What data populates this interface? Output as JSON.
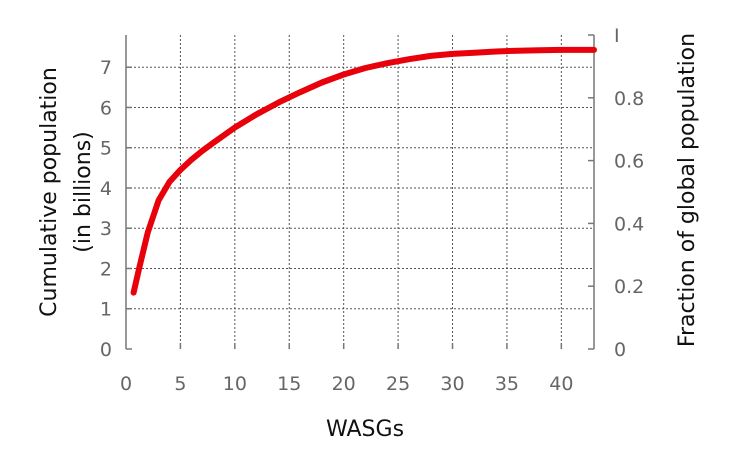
{
  "chart_data": {
    "type": "line",
    "title": "",
    "xlabel": "WASGs",
    "ylabel": [
      "Cumulative population",
      "(in billions)"
    ],
    "y2label": "Fraction of global population",
    "xlim": [
      0,
      43
    ],
    "ylim": [
      0,
      7.8
    ],
    "y2lim": [
      0,
      1
    ],
    "xticks": [
      0,
      5,
      10,
      15,
      20,
      25,
      30,
      35,
      40
    ],
    "yticks": [
      0,
      1,
      2,
      3,
      4,
      5,
      6,
      7
    ],
    "y2ticks": [
      0,
      0.2,
      0.4,
      0.6,
      0.8,
      1
    ],
    "y2tick_labels": [
      "0",
      "0.2",
      "0.4",
      "0.6",
      "0.8",
      "I"
    ],
    "grid": true,
    "series": [
      {
        "color": "#e8000b",
        "x": [
          0.7,
          1.2,
          2,
          3,
          4,
          5,
          6,
          7,
          8,
          10,
          12,
          14,
          16,
          18,
          20,
          22,
          24,
          26,
          28,
          30,
          32,
          34,
          36,
          38,
          40,
          43
        ],
        "y": [
          1.4,
          2.0,
          2.9,
          3.7,
          4.15,
          4.45,
          4.7,
          4.92,
          5.12,
          5.5,
          5.83,
          6.12,
          6.38,
          6.62,
          6.82,
          6.98,
          7.1,
          7.2,
          7.28,
          7.33,
          7.36,
          7.39,
          7.41,
          7.42,
          7.43,
          7.43
        ]
      }
    ]
  }
}
